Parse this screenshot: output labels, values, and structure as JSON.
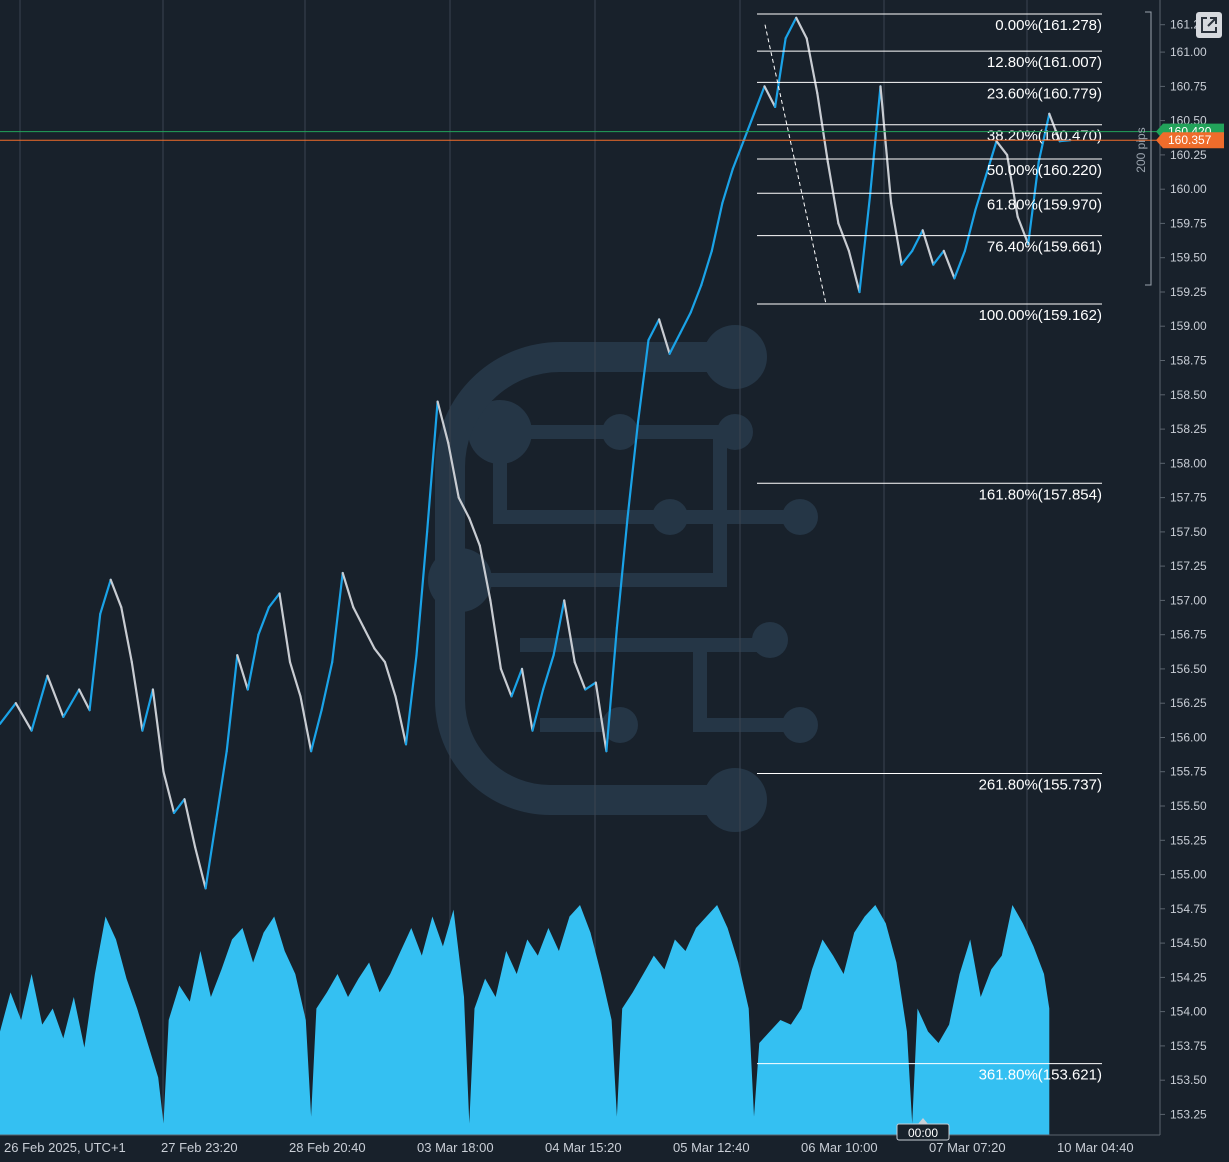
{
  "chart_data": {
    "type": "line",
    "symbol_note": "",
    "x_labels": [
      "26 Feb 2025, UTC+1",
      "27 Feb 23:20",
      "28 Feb 20:40",
      "03 Mar 18:00",
      "04 Mar 15:20",
      "05 Mar 12:40",
      "06 Mar 10:00",
      "07 Mar 07:20",
      "10 Mar 04:40"
    ],
    "y_ticks": [
      "161.2",
      "161.00",
      "160.75",
      "160.50",
      "160.25",
      "160.00",
      "159.75",
      "159.50",
      "159.25",
      "159.00",
      "158.75",
      "158.50",
      "158.25",
      "158.00",
      "157.75",
      "157.50",
      "157.25",
      "157.00",
      "156.75",
      "156.50",
      "156.25",
      "156.00",
      "155.75",
      "155.50",
      "155.25",
      "155.00",
      "154.75",
      "154.50",
      "154.25",
      "154.00",
      "153.75",
      "153.50",
      "153.25"
    ],
    "ylim": [
      153.1,
      161.38
    ],
    "price_path": [
      [
        0,
        156.1
      ],
      [
        3,
        156.25
      ],
      [
        6,
        156.05
      ],
      [
        9,
        156.45
      ],
      [
        12,
        156.15
      ],
      [
        15,
        156.35
      ],
      [
        17,
        156.2
      ],
      [
        19,
        156.9
      ],
      [
        21,
        157.15
      ],
      [
        23,
        156.95
      ],
      [
        25,
        156.55
      ],
      [
        27,
        156.05
      ],
      [
        29,
        156.35
      ],
      [
        31,
        155.75
      ],
      [
        33,
        155.45
      ],
      [
        35,
        155.55
      ],
      [
        37,
        155.2
      ],
      [
        39,
        154.9
      ],
      [
        41,
        155.4
      ],
      [
        43,
        155.9
      ],
      [
        45,
        156.6
      ],
      [
        47,
        156.35
      ],
      [
        49,
        156.75
      ],
      [
        51,
        156.95
      ],
      [
        53,
        157.05
      ],
      [
        55,
        156.55
      ],
      [
        57,
        156.3
      ],
      [
        59,
        155.9
      ],
      [
        61,
        156.2
      ],
      [
        63,
        156.55
      ],
      [
        65,
        157.2
      ],
      [
        67,
        156.95
      ],
      [
        69,
        156.8
      ],
      [
        71,
        156.65
      ],
      [
        73,
        156.55
      ],
      [
        75,
        156.3
      ],
      [
        77,
        155.95
      ],
      [
        79,
        156.6
      ],
      [
        81,
        157.5
      ],
      [
        83,
        158.45
      ],
      [
        85,
        158.15
      ],
      [
        87,
        157.75
      ],
      [
        89,
        157.6
      ],
      [
        91,
        157.4
      ],
      [
        93,
        157.0
      ],
      [
        95,
        156.5
      ],
      [
        97,
        156.3
      ],
      [
        99,
        156.5
      ],
      [
        101,
        156.05
      ],
      [
        103,
        156.35
      ],
      [
        105,
        156.6
      ],
      [
        107,
        157.0
      ],
      [
        109,
        156.55
      ],
      [
        111,
        156.35
      ],
      [
        113,
        156.4
      ],
      [
        115,
        155.9
      ],
      [
        117,
        156.8
      ],
      [
        119,
        157.6
      ],
      [
        121,
        158.3
      ],
      [
        123,
        158.9
      ],
      [
        125,
        159.05
      ],
      [
        127,
        158.8
      ],
      [
        129,
        158.95
      ],
      [
        131,
        159.1
      ],
      [
        133,
        159.3
      ],
      [
        135,
        159.55
      ],
      [
        137,
        159.9
      ],
      [
        139,
        160.15
      ],
      [
        141,
        160.35
      ],
      [
        143,
        160.55
      ],
      [
        145,
        160.75
      ],
      [
        147,
        160.6
      ],
      [
        149,
        161.1
      ],
      [
        151,
        161.25
      ],
      [
        153,
        161.1
      ],
      [
        155,
        160.7
      ],
      [
        157,
        160.2
      ],
      [
        159,
        159.75
      ],
      [
        161,
        159.55
      ],
      [
        163,
        159.25
      ],
      [
        165,
        159.95
      ],
      [
        167,
        160.75
      ],
      [
        169,
        159.9
      ],
      [
        171,
        159.45
      ],
      [
        173,
        159.55
      ],
      [
        175,
        159.7
      ],
      [
        177,
        159.45
      ],
      [
        179,
        159.55
      ],
      [
        181,
        159.35
      ],
      [
        183,
        159.55
      ],
      [
        185,
        159.85
      ],
      [
        187,
        160.1
      ],
      [
        189,
        160.35
      ],
      [
        191,
        160.25
      ],
      [
        193,
        159.8
      ],
      [
        195,
        159.6
      ],
      [
        197,
        160.2
      ],
      [
        199,
        160.55
      ],
      [
        201,
        160.35
      ],
      [
        203,
        160.357
      ]
    ],
    "x_range": [
      0,
      220
    ],
    "volume_path": [
      [
        0,
        0.45
      ],
      [
        2,
        0.62
      ],
      [
        4,
        0.5
      ],
      [
        6,
        0.7
      ],
      [
        8,
        0.48
      ],
      [
        10,
        0.55
      ],
      [
        12,
        0.42
      ],
      [
        14,
        0.6
      ],
      [
        16,
        0.38
      ],
      [
        18,
        0.7
      ],
      [
        20,
        0.95
      ],
      [
        22,
        0.85
      ],
      [
        24,
        0.68
      ],
      [
        26,
        0.55
      ],
      [
        28,
        0.4
      ],
      [
        30,
        0.25
      ],
      [
        31,
        0.05
      ],
      [
        32,
        0.5
      ],
      [
        34,
        0.65
      ],
      [
        36,
        0.58
      ],
      [
        38,
        0.8
      ],
      [
        40,
        0.6
      ],
      [
        42,
        0.72
      ],
      [
        44,
        0.85
      ],
      [
        46,
        0.9
      ],
      [
        48,
        0.75
      ],
      [
        50,
        0.88
      ],
      [
        52,
        0.95
      ],
      [
        54,
        0.8
      ],
      [
        56,
        0.7
      ],
      [
        58,
        0.5
      ],
      [
        59,
        0.08
      ],
      [
        60,
        0.55
      ],
      [
        62,
        0.62
      ],
      [
        64,
        0.7
      ],
      [
        66,
        0.6
      ],
      [
        68,
        0.68
      ],
      [
        70,
        0.75
      ],
      [
        72,
        0.62
      ],
      [
        74,
        0.7
      ],
      [
        76,
        0.8
      ],
      [
        78,
        0.9
      ],
      [
        80,
        0.78
      ],
      [
        82,
        0.95
      ],
      [
        84,
        0.82
      ],
      [
        86,
        0.98
      ],
      [
        88,
        0.6
      ],
      [
        89,
        0.05
      ],
      [
        90,
        0.55
      ],
      [
        92,
        0.68
      ],
      [
        94,
        0.6
      ],
      [
        96,
        0.8
      ],
      [
        98,
        0.7
      ],
      [
        100,
        0.85
      ],
      [
        102,
        0.78
      ],
      [
        104,
        0.9
      ],
      [
        106,
        0.8
      ],
      [
        108,
        0.95
      ],
      [
        110,
        1.0
      ],
      [
        112,
        0.88
      ],
      [
        114,
        0.7
      ],
      [
        116,
        0.5
      ],
      [
        117,
        0.08
      ],
      [
        118,
        0.55
      ],
      [
        120,
        0.62
      ],
      [
        122,
        0.7
      ],
      [
        124,
        0.78
      ],
      [
        126,
        0.72
      ],
      [
        128,
        0.85
      ],
      [
        130,
        0.8
      ],
      [
        132,
        0.9
      ],
      [
        134,
        0.95
      ],
      [
        136,
        1.0
      ],
      [
        138,
        0.9
      ],
      [
        140,
        0.75
      ],
      [
        142,
        0.55
      ],
      [
        143,
        0.08
      ],
      [
        144,
        0.4
      ],
      [
        146,
        0.45
      ],
      [
        148,
        0.5
      ],
      [
        150,
        0.48
      ],
      [
        152,
        0.55
      ],
      [
        154,
        0.72
      ],
      [
        156,
        0.85
      ],
      [
        158,
        0.78
      ],
      [
        160,
        0.7
      ],
      [
        162,
        0.88
      ],
      [
        164,
        0.95
      ],
      [
        166,
        1.0
      ],
      [
        168,
        0.92
      ],
      [
        170,
        0.75
      ],
      [
        172,
        0.45
      ],
      [
        173,
        0.05
      ],
      [
        174,
        0.55
      ],
      [
        176,
        0.45
      ],
      [
        178,
        0.4
      ],
      [
        180,
        0.48
      ],
      [
        182,
        0.7
      ],
      [
        184,
        0.85
      ],
      [
        186,
        0.6
      ],
      [
        188,
        0.72
      ],
      [
        190,
        0.78
      ],
      [
        192,
        1.0
      ],
      [
        194,
        0.92
      ],
      [
        196,
        0.82
      ],
      [
        198,
        0.7
      ],
      [
        199,
        0.55
      ]
    ],
    "fib_levels": [
      {
        "label": "0.00%(161.278)",
        "price": 161.278
      },
      {
        "label": "12.80%(161.007)",
        "price": 161.007
      },
      {
        "label": "23.60%(160.779)",
        "price": 160.779
      },
      {
        "label": "38.20%(160.470)",
        "price": 160.47
      },
      {
        "label": "50.00%(160.220)",
        "price": 160.22
      },
      {
        "label": "61.80%(159.970)",
        "price": 159.97
      },
      {
        "label": "76.40%(159.661)",
        "price": 159.661
      },
      {
        "label": "100.00%(159.162)",
        "price": 159.162
      },
      {
        "label": "161.80%(157.854)",
        "price": 157.854
      },
      {
        "label": "261.80%(155.737)",
        "price": 155.737
      },
      {
        "label": "361.80%(153.621)",
        "price": 153.621
      }
    ],
    "price_tags": [
      {
        "label": "160.420",
        "price": 160.42,
        "color": "#22a35a"
      },
      {
        "label": "160.357",
        "price": 160.357,
        "color": "#ef6c2b"
      }
    ],
    "range_label": "200 pips",
    "cursor_time": "00:00",
    "colors": {
      "background": "#18212b",
      "up": "#1aa3e8",
      "down": "#c8ccd2",
      "volume": "#34c0f2",
      "bid_line": "#22a35a",
      "ask_line": "#ef6c2b",
      "fib": "#ffffff",
      "grid": "#3a4450"
    }
  },
  "controls": {
    "expand_icon": "external-link-icon"
  }
}
